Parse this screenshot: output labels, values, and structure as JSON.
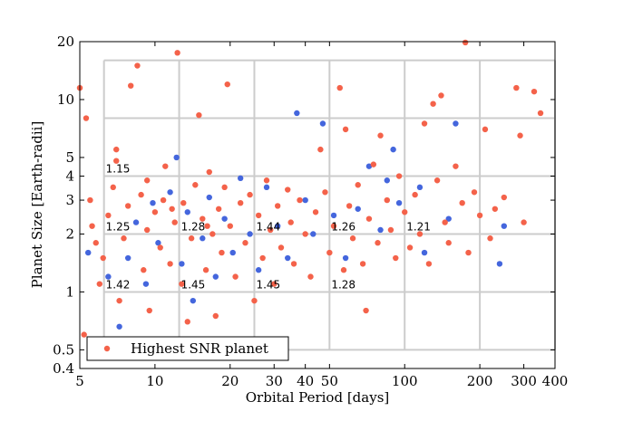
{
  "chart_data": {
    "type": "scatter",
    "xlabel": "Orbital Period [days]",
    "ylabel": "Planet Size [Earth-radii]",
    "log_x": true,
    "log_y": true,
    "xlim": [
      5,
      400
    ],
    "ylim": [
      0.4,
      20
    ],
    "xticks": [
      5,
      10,
      20,
      30,
      40,
      50,
      100,
      200,
      300,
      400
    ],
    "yticks": [
      0.4,
      0.5,
      1,
      2,
      3,
      4,
      5,
      10,
      20
    ],
    "bin_x": [
      6.25,
      12.5,
      25,
      50,
      100,
      200,
      400
    ],
    "bin_y": [
      0.5,
      1,
      2,
      4,
      8,
      16
    ],
    "bin_color": "#cccccc",
    "legend": "lower left",
    "annotations": [
      {
        "text": "1.15",
        "x": 6.25,
        "y": 4
      },
      {
        "text": "1.25",
        "x": 6.25,
        "y": 2
      },
      {
        "text": "1.28",
        "x": 12.5,
        "y": 2
      },
      {
        "text": "1.44",
        "x": 25,
        "y": 2
      },
      {
        "text": "1.26",
        "x": 50,
        "y": 2
      },
      {
        "text": "1.21",
        "x": 100,
        "y": 2
      },
      {
        "text": "1.42",
        "x": 6.25,
        "y": 1
      },
      {
        "text": "1.45",
        "x": 12.5,
        "y": 1
      },
      {
        "text": "1.45",
        "x": 25,
        "y": 1
      },
      {
        "text": "1.28",
        "x": 50,
        "y": 1
      }
    ],
    "series": [
      {
        "color": "#4466dd",
        "x": [
          5.4,
          6.5,
          7.2,
          7.8,
          8.4,
          9.2,
          9.8,
          10.3,
          11.5,
          12.2,
          12.8,
          13.5,
          14.2,
          15.5,
          16.5,
          17.5,
          19,
          20.5,
          22,
          24,
          26,
          28,
          31,
          34,
          37,
          40,
          43,
          47,
          52,
          58,
          65,
          72,
          80,
          90,
          95,
          115,
          120,
          150,
          160,
          240,
          250,
          85
        ],
        "values": [
          1.6,
          1.2,
          0.66,
          1.5,
          2.3,
          1.1,
          2.9,
          1.8,
          3.3,
          5,
          1.4,
          2.6,
          0.9,
          1.9,
          3.1,
          1.2,
          2.4,
          1.6,
          3.9,
          2,
          1.3,
          3.5,
          2.2,
          1.5,
          8.5,
          3,
          2,
          7.5,
          2.5,
          1.5,
          2.7,
          4.5,
          2.1,
          5.5,
          2.9,
          3.5,
          1.6,
          2.4,
          7.5,
          1.4,
          2.2,
          3.8
        ]
      },
      {
        "name": "Highest SNR planet",
        "color": "#f4624a",
        "x": [
          5,
          5.3,
          5.2,
          5.5,
          5.6,
          5.8,
          6,
          6.2,
          6.5,
          6.8,
          7,
          7.2,
          7.5,
          7.8,
          8,
          8.5,
          8.8,
          9,
          9.3,
          9.5,
          10,
          10.5,
          10.8,
          11,
          11.5,
          12,
          12.3,
          12.8,
          13,
          13.5,
          14,
          14.5,
          15,
          15.5,
          16,
          16.5,
          17,
          17.5,
          18,
          18.5,
          19,
          19.5,
          20,
          21,
          22,
          23,
          24,
          25,
          26,
          27,
          28,
          29,
          30,
          31,
          32,
          34,
          35,
          36,
          38,
          40,
          42,
          44,
          46,
          48,
          50,
          52,
          55,
          57,
          58,
          60,
          62,
          65,
          68,
          70,
          72,
          75,
          78,
          80,
          85,
          88,
          92,
          95,
          100,
          105,
          110,
          115,
          120,
          125,
          130,
          135,
          140,
          145,
          150,
          160,
          170,
          175,
          180,
          190,
          200,
          210,
          220,
          230,
          250,
          280,
          290,
          300,
          330,
          350,
          7,
          9.3,
          6.3,
          11.7,
          16.2
        ],
        "values": [
          11.5,
          8,
          0.6,
          3,
          2.2,
          1.8,
          1.1,
          1.5,
          2.5,
          3.5,
          4.8,
          0.9,
          1.9,
          2.8,
          11.8,
          15,
          3.2,
          1.3,
          2.1,
          0.8,
          2.6,
          1.7,
          3,
          4.5,
          1.4,
          2.3,
          17.5,
          1.1,
          2.9,
          0.7,
          1.9,
          3.6,
          8.3,
          2.4,
          1.3,
          4.2,
          2,
          0.75,
          2.7,
          1.6,
          3.5,
          12,
          2.2,
          1.2,
          2.9,
          1.8,
          3.2,
          0.9,
          2.5,
          1.5,
          3.8,
          2.1,
          1.1,
          2.8,
          1.7,
          3.4,
          2.3,
          1.4,
          3,
          2,
          1.2,
          2.6,
          5.5,
          3.3,
          1.6,
          2.2,
          11.5,
          1.3,
          7,
          2.8,
          1.9,
          3.6,
          1.4,
          0.8,
          2.4,
          4.6,
          1.8,
          6.5,
          3,
          2.1,
          1.5,
          4,
          2.6,
          1.7,
          3.2,
          2,
          7.5,
          1.4,
          9.5,
          3.8,
          10.5,
          2.3,
          1.8,
          4.5,
          2.9,
          19.8,
          1.6,
          3.3,
          2.5,
          7,
          1.9,
          2.7,
          3.1,
          11.5,
          6.5,
          2.3,
          11,
          8.5,
          5.5,
          3.8,
          0.55,
          2.7,
          2.2
        ]
      }
    ]
  }
}
